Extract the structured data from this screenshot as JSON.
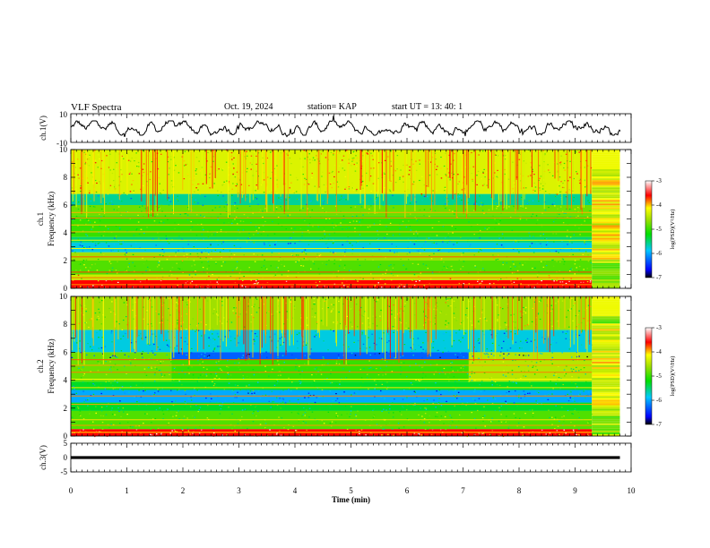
{
  "header": {
    "title": "VLF Spectra",
    "date": "Oct. 19, 2024",
    "station": "station= KAP",
    "start_ut": "start  UT  =   13: 40: 1"
  },
  "chart_data": [
    {
      "type": "line",
      "ylabel": "ch.1(V)",
      "ylim": [
        -10,
        10
      ],
      "yticks": [
        "10",
        "-10"
      ],
      "xlim": [
        0,
        10
      ],
      "description_series": "ch.1 waveform",
      "color": "#000000"
    },
    {
      "type": "heatmap",
      "ylabel": "ch.1\nFrequency (kHz)",
      "ylabel_lines": [
        "ch.1",
        "Frequency (kHz)"
      ],
      "ylim": [
        0,
        10
      ],
      "yticks": [
        "0",
        "2",
        "4",
        "6",
        "8",
        "10"
      ],
      "xlim": [
        0,
        10
      ],
      "colorbar": {
        "label": "log(PSD)(V²/Hz)",
        "ticks": [
          "-3",
          "-4",
          "-5",
          "-6",
          "-7"
        ],
        "range": [
          -7,
          -3
        ]
      },
      "bands_khz": [
        {
          "from": 0,
          "to": 0.6,
          "level": -3.6
        },
        {
          "from": 0.6,
          "to": 1.0,
          "level": -4.4
        },
        {
          "from": 1.0,
          "to": 2.0,
          "level": -4.9
        },
        {
          "from": 2.0,
          "to": 2.6,
          "level": -4.6
        },
        {
          "from": 2.6,
          "to": 3.3,
          "level": -5.8
        },
        {
          "from": 3.3,
          "to": 3.7,
          "level": -5.5
        },
        {
          "from": 3.7,
          "to": 5.2,
          "level": -5.0
        },
        {
          "from": 5.2,
          "to": 6.0,
          "level": -4.8
        },
        {
          "from": 6.0,
          "to": 6.8,
          "level": -5.6
        },
        {
          "from": 6.8,
          "to": 10,
          "level": -4.3
        }
      ],
      "change_time_min": 9.3
    },
    {
      "type": "heatmap",
      "ylabel": "ch.2\nFrequency (kHz)",
      "ylabel_lines": [
        "ch.2",
        "Frequency (kHz)"
      ],
      "ylim": [
        0,
        10
      ],
      "yticks": [
        "0",
        "2",
        "4",
        "6",
        "8",
        "10"
      ],
      "xlim": [
        0,
        10
      ],
      "colorbar": {
        "label": "log(PSD)(V²/Hz)",
        "ticks": [
          "-3",
          "-4",
          "-5",
          "-6",
          "-7"
        ],
        "range": [
          -7,
          -3
        ]
      },
      "bands_khz": [
        {
          "from": 0,
          "to": 0.5,
          "level": -3.6
        },
        {
          "from": 0.5,
          "to": 1.8,
          "level": -4.9
        },
        {
          "from": 1.8,
          "to": 2.4,
          "level": -5.3
        },
        {
          "from": 2.4,
          "to": 3.3,
          "level": -6.0
        },
        {
          "from": 3.3,
          "to": 3.9,
          "level": -5.3
        },
        {
          "from": 3.9,
          "to": 5.6,
          "level": -5.0
        },
        {
          "from": 5.6,
          "to": 6.0,
          "level": -6.2
        },
        {
          "from": 6.0,
          "to": 7.6,
          "level": -5.8
        },
        {
          "from": 7.6,
          "to": 10,
          "level": -4.6
        }
      ],
      "change_time_min": 9.3
    },
    {
      "type": "line",
      "ylabel": "ch.3(V)",
      "ylim": [
        -5,
        5
      ],
      "yticks": [
        "5",
        "0",
        "-5"
      ],
      "xlim": [
        0,
        10
      ],
      "xlabel": "Time  (min)",
      "xticks": [
        "0",
        "1",
        "2",
        "3",
        "4",
        "5",
        "6",
        "7",
        "8",
        "9",
        "10"
      ],
      "level_band": [
        -0.5,
        0.5
      ],
      "color": "#000000"
    }
  ]
}
